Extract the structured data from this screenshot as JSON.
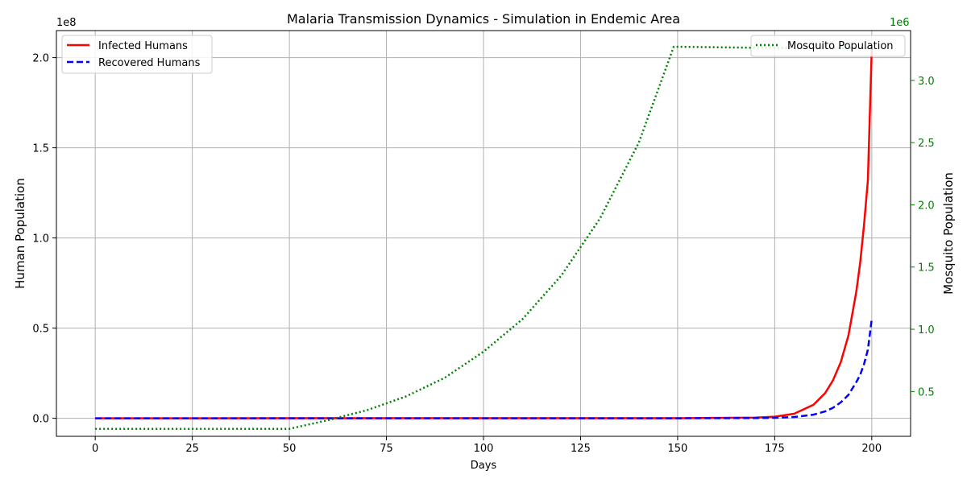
{
  "chart_data": {
    "type": "line",
    "title": "Malaria Transmission Dynamics - Simulation in Endemic Area",
    "xlabel": "Days",
    "ylabel_left": "Human Population",
    "ylabel_right": "Mosquito Population",
    "xlim": [
      -10,
      210
    ],
    "ylim_left": [
      -10000000,
      215000000
    ],
    "ylim_right": [
      140000,
      3400000
    ],
    "x_ticks": [
      0,
      25,
      50,
      75,
      100,
      125,
      150,
      175,
      200
    ],
    "y_left_ticks": [
      0,
      50000000,
      100000000,
      150000000,
      200000000
    ],
    "y_left_tick_labels": [
      "0.0",
      "0.5",
      "1.0",
      "1.5",
      "2.0"
    ],
    "y_left_offset_label": "1e8",
    "y_right_ticks": [
      500000,
      1000000,
      1500000,
      2000000,
      2500000,
      3000000
    ],
    "y_right_tick_labels": [
      "0.5",
      "1.0",
      "1.5",
      "2.0",
      "2.5",
      "3.0"
    ],
    "y_right_offset_label": "1e6",
    "grid": true,
    "legend_left_placement": "top-left",
    "legend_right_placement": "top-right",
    "series": [
      {
        "name": "Infected Humans",
        "axis": "left",
        "color": "#ff0000",
        "style": "solid",
        "x": [
          0,
          150,
          170,
          175,
          180,
          185,
          188,
          190,
          192,
          194,
          196,
          197,
          198,
          199,
          200
        ],
        "values": [
          0,
          50000,
          400000,
          900000,
          2500000,
          7500000,
          14000000,
          21000000,
          31000000,
          46000000,
          70000000,
          86000000,
          107000000,
          132000000,
          205000000
        ]
      },
      {
        "name": "Recovered Humans",
        "axis": "left",
        "color": "#0000ff",
        "style": "dashed",
        "x": [
          0,
          150,
          170,
          175,
          180,
          185,
          188,
          190,
          192,
          194,
          196,
          197,
          198,
          199,
          200
        ],
        "values": [
          0,
          10000,
          100000,
          250000,
          700000,
          2000000,
          3800000,
          5800000,
          8800000,
          13000000,
          20000000,
          24000000,
          30000000,
          38000000,
          55000000
        ]
      },
      {
        "name": "Mosquito Population",
        "axis": "right",
        "color": "#008000",
        "style": "dotted",
        "x": [
          0,
          50,
          60,
          70,
          80,
          90,
          100,
          110,
          120,
          130,
          140,
          149,
          150,
          175,
          200
        ],
        "values": [
          200000,
          200000,
          270000,
          350000,
          460000,
          610000,
          820000,
          1080000,
          1430000,
          1890000,
          2500000,
          3270000,
          3270000,
          3260000,
          3260000
        ]
      }
    ]
  }
}
